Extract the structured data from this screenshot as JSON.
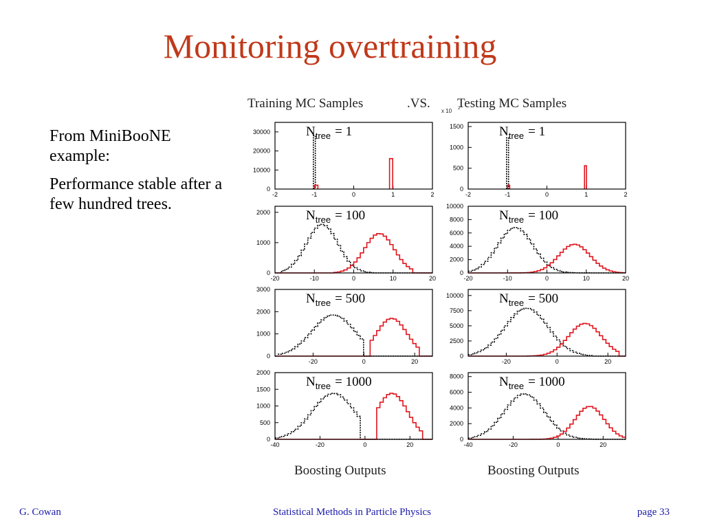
{
  "slide": {
    "title": "Monitoring overtraining",
    "paragraphs": [
      "From MiniBooNE example:",
      "Performance stable after a few hundred trees."
    ]
  },
  "footer": {
    "left": "G. Cowan",
    "center": "Statistical Methods in Particle Physics",
    "right": "page 33"
  },
  "figure": {
    "left_column_title": "Training MC Samples",
    "vs_label": ".VS.",
    "right_column_title": "Testing MC Samples",
    "scale_note": "x 10",
    "scale_exponent": "2",
    "x_axis_label": "Boosting Outputs",
    "colors": {
      "signal": "#e0141c",
      "background": "#000000"
    }
  },
  "chart_data": [
    {
      "type": "bar",
      "panel": "training",
      "row": 1,
      "label_main": "N",
      "label_sub": "tree",
      "label_value": "= 1",
      "xlim": [
        -2,
        2
      ],
      "xticks": [
        -2,
        -1,
        0,
        1,
        2
      ],
      "ylim": [
        0,
        35000
      ],
      "yticks": [
        0,
        10000,
        20000,
        30000
      ],
      "series": [
        {
          "kind": "spike",
          "color": "black",
          "dash": true,
          "x": [
            -1.0
          ],
          "width": 0.05,
          "values": [
            28000
          ]
        },
        {
          "kind": "spike",
          "color": "red",
          "x": [
            0.95,
            -0.95
          ],
          "width": 0.08,
          "values": [
            16000,
            2000
          ]
        }
      ]
    },
    {
      "type": "bar",
      "panel": "testing",
      "row": 1,
      "label_main": "N",
      "label_sub": "tree",
      "label_value": "= 1",
      "xlim": [
        -2,
        2
      ],
      "xticks": [
        -2,
        -1,
        0,
        1,
        2
      ],
      "ylim": [
        0,
        1600
      ],
      "yticks": [
        0,
        500,
        1000,
        1500
      ],
      "scale_note": true,
      "series": [
        {
          "kind": "spike",
          "color": "black",
          "dash": true,
          "x": [
            -1.0
          ],
          "width": 0.05,
          "values": [
            1230
          ]
        },
        {
          "kind": "spike",
          "color": "red",
          "x": [
            0.98,
            -0.97
          ],
          "width": 0.05,
          "values": [
            560,
            90
          ]
        }
      ]
    },
    {
      "type": "line",
      "panel": "training",
      "row": 2,
      "label_main": "N",
      "label_sub": "tree",
      "label_value": "= 100",
      "xlim": [
        -20,
        20
      ],
      "xticks": [
        -20,
        -10,
        0,
        10,
        20
      ],
      "ylim": [
        0,
        2200
      ],
      "yticks": [
        0,
        1000,
        2000
      ],
      "series": [
        {
          "kind": "gauss",
          "color": "black",
          "dash": true,
          "mean": -8,
          "sigma": 4.0,
          "amp": 1600,
          "lo": -18,
          "hi": 5
        },
        {
          "kind": "gauss",
          "color": "red",
          "mean": 6.5,
          "sigma": 3.8,
          "amp": 1300,
          "lo": -5,
          "hi": 15
        }
      ]
    },
    {
      "type": "line",
      "panel": "testing",
      "row": 2,
      "label_main": "N",
      "label_sub": "tree",
      "label_value": "= 100",
      "xlim": [
        -20,
        20
      ],
      "xticks": [
        -20,
        -10,
        0,
        10,
        20
      ],
      "ylim": [
        0,
        10000
      ],
      "yticks": [
        0,
        2000,
        4000,
        6000,
        8000,
        10000
      ],
      "series": [
        {
          "kind": "gauss",
          "color": "black",
          "dash": true,
          "mean": -8,
          "sigma": 4.5,
          "amp": 6800,
          "lo": -20,
          "hi": 12
        },
        {
          "kind": "gauss",
          "color": "red",
          "mean": 7,
          "sigma": 4.0,
          "amp": 4300,
          "lo": -12,
          "hi": 20
        }
      ]
    },
    {
      "type": "line",
      "panel": "training",
      "row": 3,
      "label_main": "N",
      "label_sub": "tree",
      "label_value": "= 500",
      "xlim": [
        -35,
        27
      ],
      "xticks": [
        -20,
        0,
        20
      ],
      "ylim": [
        0,
        3000
      ],
      "yticks": [
        0,
        1000,
        2000,
        3000
      ],
      "series": [
        {
          "kind": "gauss",
          "color": "black",
          "dash": true,
          "mean": -12,
          "sigma": 8.5,
          "amp": 1850,
          "lo": -34,
          "hi": 0
        },
        {
          "kind": "gauss",
          "color": "red",
          "mean": 11,
          "sigma": 6.0,
          "amp": 1700,
          "lo": 3,
          "hi": 22
        }
      ]
    },
    {
      "type": "line",
      "panel": "testing",
      "row": 3,
      "label_main": "N",
      "label_sub": "tree",
      "label_value": "= 500",
      "xlim": [
        -35,
        27
      ],
      "xticks": [
        -20,
        0,
        20
      ],
      "ylim": [
        0,
        11000
      ],
      "yticks": [
        0,
        2500,
        5000,
        7500,
        10000
      ],
      "series": [
        {
          "kind": "gauss",
          "color": "black",
          "dash": true,
          "mean": -12,
          "sigma": 8.5,
          "amp": 7900,
          "lo": -35,
          "hi": 14
        },
        {
          "kind": "gauss",
          "color": "red",
          "mean": 11,
          "sigma": 6.5,
          "amp": 5400,
          "lo": -12,
          "hi": 25
        }
      ]
    },
    {
      "type": "line",
      "panel": "training",
      "row": 4,
      "label_main": "N",
      "label_sub": "tree",
      "label_value": "= 1000",
      "xlim": [
        -40,
        30
      ],
      "xticks": [
        -40,
        -20,
        0,
        20
      ],
      "ylim": [
        0,
        2000
      ],
      "yticks": [
        0,
        500,
        1000,
        1500,
        2000
      ],
      "series": [
        {
          "kind": "gauss",
          "color": "black",
          "dash": true,
          "mean": -14,
          "sigma": 9.5,
          "amp": 1380,
          "lo": -40,
          "hi": -2
        },
        {
          "kind": "gauss",
          "color": "red",
          "mean": 12,
          "sigma": 7.0,
          "amp": 1380,
          "lo": 5,
          "hi": 26
        }
      ]
    },
    {
      "type": "line",
      "panel": "testing",
      "row": 4,
      "label_main": "N",
      "label_sub": "tree",
      "label_value": "= 1000",
      "xlim": [
        -40,
        30
      ],
      "xticks": [
        -40,
        -20,
        0,
        20
      ],
      "ylim": [
        0,
        8500
      ],
      "yticks": [
        0,
        2000,
        4000,
        6000,
        8000
      ],
      "series": [
        {
          "kind": "gauss",
          "color": "black",
          "dash": true,
          "mean": -15,
          "sigma": 9.0,
          "amp": 5800,
          "lo": -40,
          "hi": 18
        },
        {
          "kind": "gauss",
          "color": "red",
          "mean": 14,
          "sigma": 6.5,
          "amp": 4200,
          "lo": -20,
          "hi": 30
        }
      ]
    }
  ]
}
